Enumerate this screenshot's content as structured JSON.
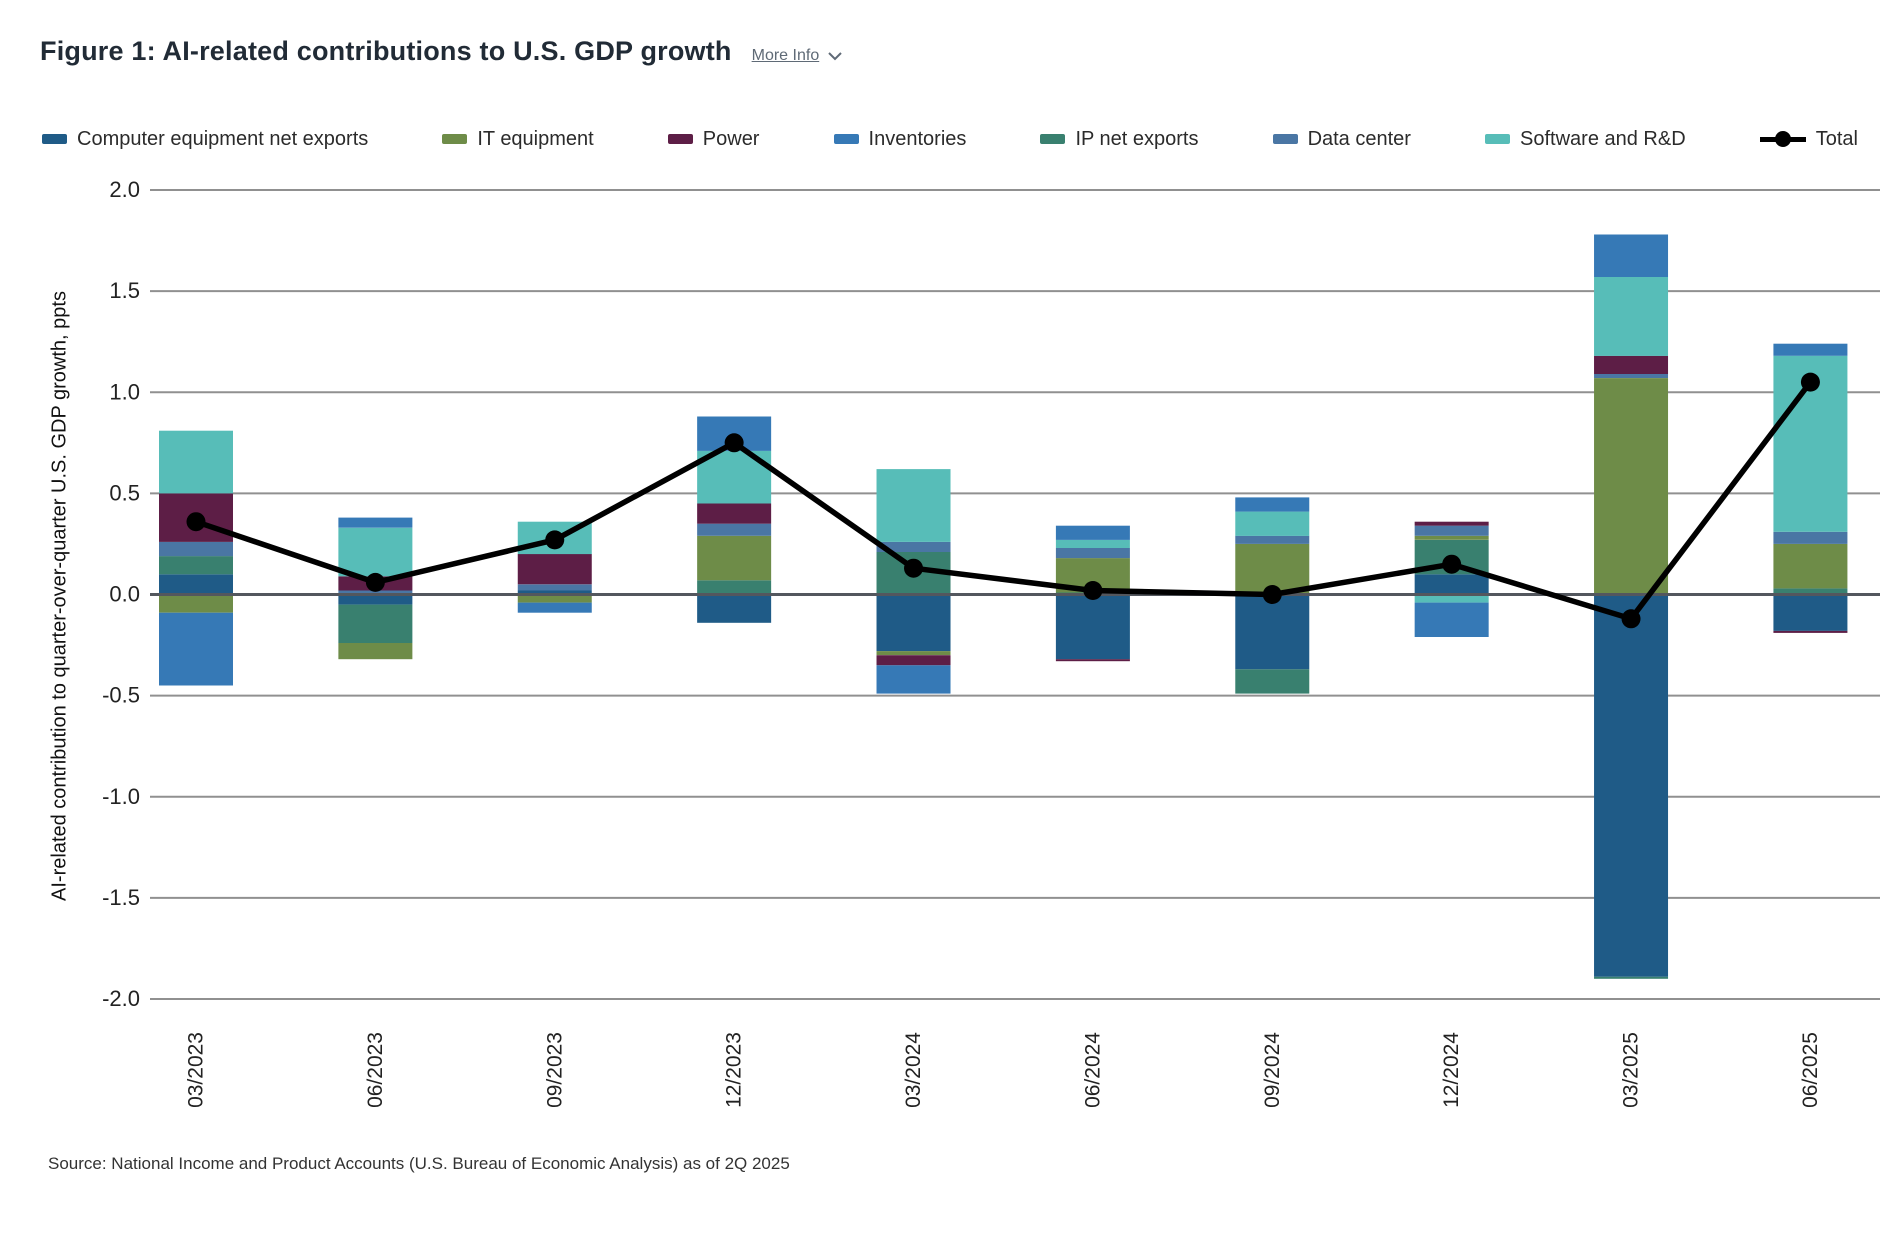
{
  "header": {
    "title": "Figure 1: AI-related contributions to U.S. GDP growth",
    "more_info_label": "More Info"
  },
  "footer": {
    "source": "Source: National Income and Product Accounts (U.S. Bureau of Economic Analysis) as of 2Q 2025"
  },
  "colors": {
    "grid": "#909090",
    "zero_line": "#53575e",
    "total_line": "#000000",
    "tick_text": "#222222",
    "link": "#5f6a76"
  },
  "chart_data": {
    "type": "bar",
    "stacked": true,
    "title": "Figure 1: AI-related contributions to U.S. GDP growth",
    "xlabel": "",
    "ylabel": "AI-related contribution to quarter-over-quarter U.S. GDP growth, ppts",
    "ylim": [
      -2.0,
      2.0
    ],
    "y_ticks": [
      2.0,
      1.5,
      1.0,
      0.5,
      0.0,
      -0.5,
      -1.0,
      -1.5,
      -2.0
    ],
    "grid": true,
    "legend_position": "top",
    "categories": [
      "03/2023",
      "06/2023",
      "09/2023",
      "12/2023",
      "03/2024",
      "06/2024",
      "09/2024",
      "12/2024",
      "03/2025",
      "06/2025"
    ],
    "series": [
      {
        "name": "Computer equipment net exports",
        "color": "#1f5b87",
        "values": [
          0.1,
          -0.05,
          0.02,
          -0.14,
          -0.28,
          -0.32,
          -0.37,
          0.1,
          -1.89,
          -0.18
        ]
      },
      {
        "name": "IT equipment",
        "color": "#6e8c48",
        "values": [
          -0.09,
          -0.08,
          -0.04,
          0.22,
          -0.02,
          0.17,
          0.25,
          0.02,
          1.07,
          0.22
        ]
      },
      {
        "name": "Power",
        "color": "#5d1e46",
        "values": [
          0.24,
          0.07,
          0.15,
          0.1,
          -0.05,
          -0.01,
          0.0,
          0.02,
          0.09,
          -0.01
        ]
      },
      {
        "name": "Inventories",
        "color": "#3679b6",
        "values": [
          -0.36,
          0.05,
          -0.05,
          0.17,
          -0.14,
          0.07,
          0.07,
          -0.17,
          0.21,
          0.06
        ]
      },
      {
        "name": "IP net exports",
        "color": "#39806f",
        "values": [
          0.09,
          -0.19,
          0.0,
          0.07,
          0.21,
          0.01,
          -0.12,
          0.17,
          -0.01,
          0.03
        ]
      },
      {
        "name": "Data center",
        "color": "#4a76a4",
        "values": [
          0.07,
          0.02,
          0.03,
          0.06,
          0.05,
          0.05,
          0.04,
          0.05,
          0.02,
          0.06
        ]
      },
      {
        "name": "Software and R&D",
        "color": "#57bdb8",
        "values": [
          0.31,
          0.24,
          0.16,
          0.26,
          0.36,
          0.04,
          0.12,
          -0.04,
          0.39,
          0.87
        ]
      }
    ],
    "stack_order": [
      "Computer equipment net exports",
      "IP net exports",
      "IT equipment",
      "Data center",
      "Power",
      "Software and R&D",
      "Inventories"
    ],
    "line_series": {
      "name": "Total",
      "color": "#000000",
      "values": [
        0.36,
        0.06,
        0.27,
        0.75,
        0.13,
        0.02,
        0.0,
        0.15,
        -0.12,
        1.05
      ]
    }
  }
}
